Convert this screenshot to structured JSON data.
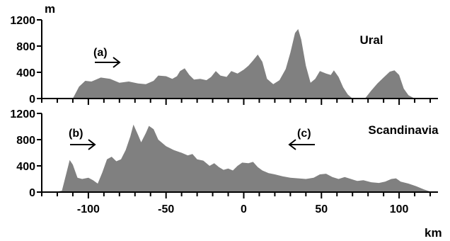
{
  "chart_data": [
    {
      "type": "area",
      "title": "Ural",
      "ylabel": "m",
      "xlabel": "km",
      "xlim": [
        -130,
        125
      ],
      "ylim": [
        0,
        1200
      ],
      "yticks": [
        0,
        400,
        800,
        1200
      ],
      "color": "#808080",
      "annotations": [
        {
          "text": "(a)",
          "arrow": "right"
        }
      ],
      "segments": [
        [
          [
            -110,
            0
          ],
          [
            -106,
            180
          ],
          [
            -102,
            270
          ],
          [
            -98,
            260
          ],
          [
            -92,
            320
          ],
          [
            -86,
            300
          ],
          [
            -80,
            240
          ],
          [
            -74,
            260
          ],
          [
            -68,
            230
          ],
          [
            -63,
            220
          ],
          [
            -58,
            270
          ],
          [
            -55,
            350
          ],
          [
            -50,
            340
          ],
          [
            -46,
            300
          ],
          [
            -43,
            340
          ],
          [
            -41,
            420
          ],
          [
            -38,
            460
          ],
          [
            -35,
            360
          ],
          [
            -32,
            290
          ],
          [
            -28,
            300
          ],
          [
            -24,
            280
          ],
          [
            -21,
            330
          ],
          [
            -18,
            420
          ],
          [
            -15,
            350
          ],
          [
            -11,
            330
          ],
          [
            -8,
            420
          ],
          [
            -4,
            380
          ],
          [
            0,
            440
          ],
          [
            3,
            500
          ],
          [
            6,
            580
          ],
          [
            9,
            670
          ],
          [
            12,
            560
          ],
          [
            15,
            300
          ],
          [
            19,
            220
          ],
          [
            23,
            280
          ],
          [
            27,
            450
          ],
          [
            30,
            700
          ],
          [
            33,
            1000
          ],
          [
            35,
            1060
          ],
          [
            37,
            900
          ],
          [
            40,
            500
          ],
          [
            43,
            240
          ],
          [
            46,
            300
          ],
          [
            49,
            420
          ],
          [
            53,
            380
          ],
          [
            56,
            360
          ],
          [
            58,
            430
          ],
          [
            61,
            330
          ],
          [
            64,
            170
          ],
          [
            67,
            60
          ],
          [
            70,
            0
          ]
        ],
        [
          [
            78,
            0
          ],
          [
            82,
            120
          ],
          [
            86,
            230
          ],
          [
            90,
            320
          ],
          [
            94,
            410
          ],
          [
            97,
            430
          ],
          [
            100,
            360
          ],
          [
            103,
            150
          ],
          [
            106,
            50
          ],
          [
            110,
            0
          ]
        ]
      ]
    },
    {
      "type": "area",
      "title": "Scandinavia",
      "ylabel": "",
      "xlabel": "km",
      "xlim": [
        -130,
        125
      ],
      "ylim": [
        0,
        1200
      ],
      "yticks": [
        0,
        400,
        800,
        1200
      ],
      "xticks": [
        -100,
        -50,
        0,
        50,
        100
      ],
      "color": "#808080",
      "annotations": [
        {
          "text": "(b)",
          "arrow": "right"
        },
        {
          "text": "(c)",
          "arrow": "left"
        }
      ],
      "segments": [
        [
          [
            -122,
            0
          ],
          [
            -117,
            20
          ],
          [
            -114,
            300
          ],
          [
            -112,
            490
          ],
          [
            -110,
            420
          ],
          [
            -107,
            220
          ],
          [
            -104,
            200
          ],
          [
            -100,
            220
          ],
          [
            -97,
            180
          ],
          [
            -94,
            130
          ],
          [
            -91,
            300
          ],
          [
            -88,
            500
          ],
          [
            -85,
            540
          ],
          [
            -82,
            470
          ],
          [
            -79,
            500
          ],
          [
            -76,
            640
          ],
          [
            -73,
            850
          ],
          [
            -71,
            1030
          ],
          [
            -68,
            870
          ],
          [
            -66,
            760
          ],
          [
            -63,
            900
          ],
          [
            -61,
            1010
          ],
          [
            -58,
            960
          ],
          [
            -55,
            800
          ],
          [
            -50,
            700
          ],
          [
            -45,
            640
          ],
          [
            -40,
            600
          ],
          [
            -36,
            560
          ],
          [
            -33,
            580
          ],
          [
            -30,
            500
          ],
          [
            -26,
            480
          ],
          [
            -22,
            400
          ],
          [
            -19,
            440
          ],
          [
            -16,
            380
          ],
          [
            -13,
            340
          ],
          [
            -10,
            360
          ],
          [
            -7,
            330
          ],
          [
            -4,
            400
          ],
          [
            -1,
            450
          ],
          [
            3,
            440
          ],
          [
            6,
            460
          ],
          [
            9,
            380
          ],
          [
            12,
            330
          ],
          [
            16,
            290
          ],
          [
            20,
            270
          ],
          [
            25,
            240
          ],
          [
            30,
            220
          ],
          [
            35,
            210
          ],
          [
            40,
            200
          ],
          [
            45,
            220
          ],
          [
            49,
            270
          ],
          [
            53,
            280
          ],
          [
            57,
            230
          ],
          [
            61,
            200
          ],
          [
            65,
            230
          ],
          [
            69,
            200
          ],
          [
            73,
            170
          ],
          [
            77,
            180
          ],
          [
            82,
            150
          ],
          [
            87,
            140
          ],
          [
            91,
            160
          ],
          [
            95,
            200
          ],
          [
            98,
            210
          ],
          [
            101,
            160
          ],
          [
            106,
            130
          ],
          [
            111,
            90
          ],
          [
            116,
            40
          ],
          [
            121,
            0
          ]
        ]
      ]
    }
  ]
}
